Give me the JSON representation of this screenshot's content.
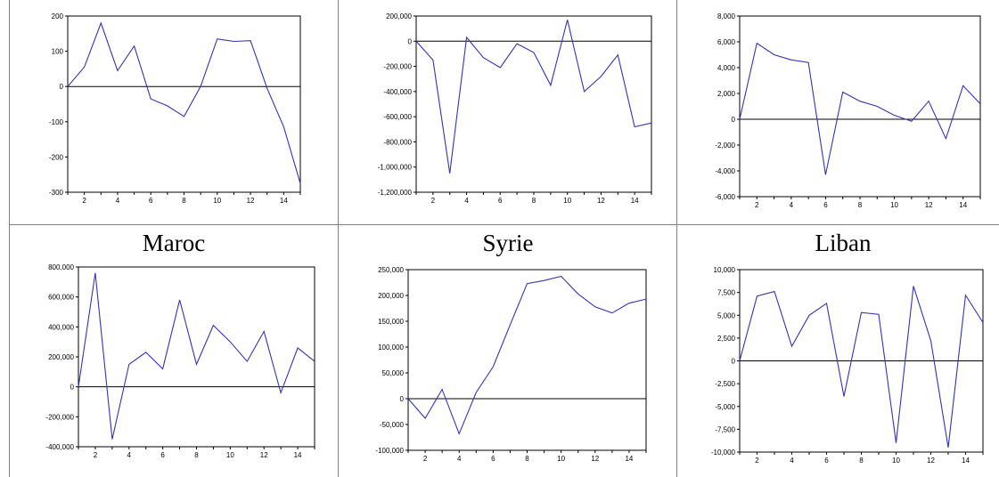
{
  "labels": {
    "maroc": "Maroc",
    "syrie": "Syrie",
    "liban": "Liban"
  },
  "colors": {
    "series": "#3333bb",
    "axis": "#000000",
    "zero_line": "#000000",
    "cell_border": "#808080"
  },
  "chart_data": [
    {
      "type": "line",
      "x": [
        1,
        2,
        3,
        4,
        5,
        6,
        7,
        8,
        9,
        10,
        11,
        12,
        13,
        14,
        15
      ],
      "series": [
        {
          "values": [
            0,
            55,
            180,
            45,
            115,
            -35,
            -55,
            -85,
            0,
            135,
            128,
            130,
            -5,
            -115,
            -275
          ]
        }
      ],
      "ylim": [
        -300,
        200
      ],
      "yticks": [
        {
          "v": 200,
          "t": "200"
        },
        {
          "v": 100,
          "t": "100"
        },
        {
          "v": 0,
          "t": "0"
        },
        {
          "v": -100,
          "t": "-100"
        },
        {
          "v": -200,
          "t": "-200"
        },
        {
          "v": -300,
          "t": "-300"
        }
      ],
      "xticks": [
        {
          "v": 2,
          "t": "2"
        },
        {
          "v": 4,
          "t": "4"
        },
        {
          "v": 6,
          "t": "6"
        },
        {
          "v": 8,
          "t": "8"
        },
        {
          "v": 10,
          "t": "10"
        },
        {
          "v": 12,
          "t": "12"
        },
        {
          "v": 14,
          "t": "14"
        }
      ],
      "xlim": [
        1,
        15
      ]
    },
    {
      "type": "line",
      "x": [
        1,
        2,
        3,
        4,
        5,
        6,
        7,
        8,
        9,
        10,
        11,
        12,
        13,
        14,
        15
      ],
      "series": [
        {
          "values": [
            0,
            -150000,
            -1050000,
            30000,
            -130000,
            -210000,
            -20000,
            -90000,
            -350000,
            170000,
            -400000,
            -280000,
            -110000,
            -680000,
            -650000
          ]
        }
      ],
      "ylim": [
        -1200000,
        200000
      ],
      "yticks": [
        {
          "v": 200000,
          "t": "200,000"
        },
        {
          "v": 0,
          "t": "0"
        },
        {
          "v": -200000,
          "t": "-200,000"
        },
        {
          "v": -400000,
          "t": "-400,000"
        },
        {
          "v": -600000,
          "t": "-600,000"
        },
        {
          "v": -800000,
          "t": "-800,000"
        },
        {
          "v": -1000000,
          "t": "-1,000,000"
        },
        {
          "v": -1200000,
          "t": "-1,200,000"
        }
      ],
      "xticks": [
        {
          "v": 2,
          "t": "2"
        },
        {
          "v": 4,
          "t": "4"
        },
        {
          "v": 6,
          "t": "6"
        },
        {
          "v": 8,
          "t": "8"
        },
        {
          "v": 10,
          "t": "10"
        },
        {
          "v": 12,
          "t": "12"
        },
        {
          "v": 14,
          "t": "14"
        }
      ],
      "xlim": [
        1,
        15
      ]
    },
    {
      "type": "line",
      "x": [
        1,
        2,
        3,
        4,
        5,
        6,
        7,
        8,
        9,
        10,
        11,
        12,
        13,
        14,
        15
      ],
      "series": [
        {
          "values": [
            0,
            5900,
            5000,
            4600,
            4400,
            -4300,
            2100,
            1400,
            1000,
            300,
            -150,
            1400,
            -1500,
            2600,
            1200
          ]
        }
      ],
      "ylim": [
        -6000,
        8000
      ],
      "yticks": [
        {
          "v": 8000,
          "t": "8,000"
        },
        {
          "v": 6000,
          "t": "6,000"
        },
        {
          "v": 4000,
          "t": "4,000"
        },
        {
          "v": 2000,
          "t": "2,000"
        },
        {
          "v": 0,
          "t": "0"
        },
        {
          "v": -2000,
          "t": "-2,000"
        },
        {
          "v": -4000,
          "t": "-4,000"
        },
        {
          "v": -6000,
          "t": "-6,000"
        }
      ],
      "xticks": [
        {
          "v": 2,
          "t": "2"
        },
        {
          "v": 4,
          "t": "4"
        },
        {
          "v": 6,
          "t": "6"
        },
        {
          "v": 8,
          "t": "8"
        },
        {
          "v": 10,
          "t": "10"
        },
        {
          "v": 12,
          "t": "12"
        },
        {
          "v": 14,
          "t": "14"
        }
      ],
      "xlim": [
        1,
        15
      ]
    },
    {
      "type": "line",
      "x": [
        1,
        2,
        3,
        4,
        5,
        6,
        7,
        8,
        9,
        10,
        11,
        12,
        13,
        14,
        15
      ],
      "series": [
        {
          "values": [
            0,
            760000,
            -350000,
            150000,
            230000,
            120000,
            580000,
            150000,
            410000,
            300000,
            170000,
            370000,
            -40000,
            260000,
            170000
          ]
        }
      ],
      "ylim": [
        -400000,
        800000
      ],
      "yticks": [
        {
          "v": 800000,
          "t": "800,000"
        },
        {
          "v": 600000,
          "t": "600,000"
        },
        {
          "v": 400000,
          "t": "400,000"
        },
        {
          "v": 200000,
          "t": "200,000"
        },
        {
          "v": 0,
          "t": "0"
        },
        {
          "v": -200000,
          "t": "-200,000"
        },
        {
          "v": -400000,
          "t": "-400,000"
        }
      ],
      "xticks": [
        {
          "v": 2,
          "t": "2"
        },
        {
          "v": 4,
          "t": "4"
        },
        {
          "v": 6,
          "t": "6"
        },
        {
          "v": 8,
          "t": "8"
        },
        {
          "v": 10,
          "t": "10"
        },
        {
          "v": 12,
          "t": "12"
        },
        {
          "v": 14,
          "t": "14"
        }
      ],
      "xlim": [
        1,
        15
      ]
    },
    {
      "type": "line",
      "x": [
        1,
        2,
        3,
        4,
        5,
        6,
        7,
        8,
        9,
        10,
        11,
        12,
        13,
        14,
        15
      ],
      "series": [
        {
          "values": [
            0,
            -38000,
            18000,
            -68000,
            12000,
            62000,
            143000,
            223000,
            229000,
            237000,
            203000,
            178000,
            166000,
            185000,
            193000
          ]
        }
      ],
      "ylim": [
        -100000,
        250000
      ],
      "yticks": [
        {
          "v": 250000,
          "t": "250,000"
        },
        {
          "v": 200000,
          "t": "200,000"
        },
        {
          "v": 150000,
          "t": "150,000"
        },
        {
          "v": 100000,
          "t": "100,000"
        },
        {
          "v": 50000,
          "t": "50,000"
        },
        {
          "v": 0,
          "t": "0"
        },
        {
          "v": -50000,
          "t": "-50,000"
        },
        {
          "v": -100000,
          "t": "-100,000"
        }
      ],
      "xticks": [
        {
          "v": 2,
          "t": "2"
        },
        {
          "v": 4,
          "t": "4"
        },
        {
          "v": 6,
          "t": "6"
        },
        {
          "v": 8,
          "t": "8"
        },
        {
          "v": 10,
          "t": "10"
        },
        {
          "v": 12,
          "t": "12"
        },
        {
          "v": 14,
          "t": "14"
        }
      ],
      "xlim": [
        1,
        15
      ]
    },
    {
      "type": "line",
      "x": [
        1,
        2,
        3,
        4,
        5,
        6,
        7,
        8,
        9,
        10,
        11,
        12,
        13,
        14,
        15
      ],
      "series": [
        {
          "values": [
            0,
            7100,
            7600,
            1600,
            5000,
            6300,
            -3900,
            5300,
            5100,
            -9000,
            8200,
            2200,
            -9500,
            7200,
            4200
          ]
        }
      ],
      "ylim": [
        -10000,
        10000
      ],
      "yticks": [
        {
          "v": 10000,
          "t": "10,000"
        },
        {
          "v": 7500,
          "t": "7,500"
        },
        {
          "v": 5000,
          "t": "5,000"
        },
        {
          "v": 2500,
          "t": "2,500"
        },
        {
          "v": 0,
          "t": "0"
        },
        {
          "v": -2500,
          "t": "-2,500"
        },
        {
          "v": -5000,
          "t": "-5,000"
        },
        {
          "v": -7500,
          "t": "-7,500"
        },
        {
          "v": -10000,
          "t": "-10,000"
        }
      ],
      "xticks": [
        {
          "v": 2,
          "t": "2"
        },
        {
          "v": 4,
          "t": "4"
        },
        {
          "v": 6,
          "t": "6"
        },
        {
          "v": 8,
          "t": "8"
        },
        {
          "v": 10,
          "t": "10"
        },
        {
          "v": 12,
          "t": "12"
        },
        {
          "v": 14,
          "t": "14"
        }
      ],
      "xlim": [
        1,
        15
      ]
    }
  ]
}
